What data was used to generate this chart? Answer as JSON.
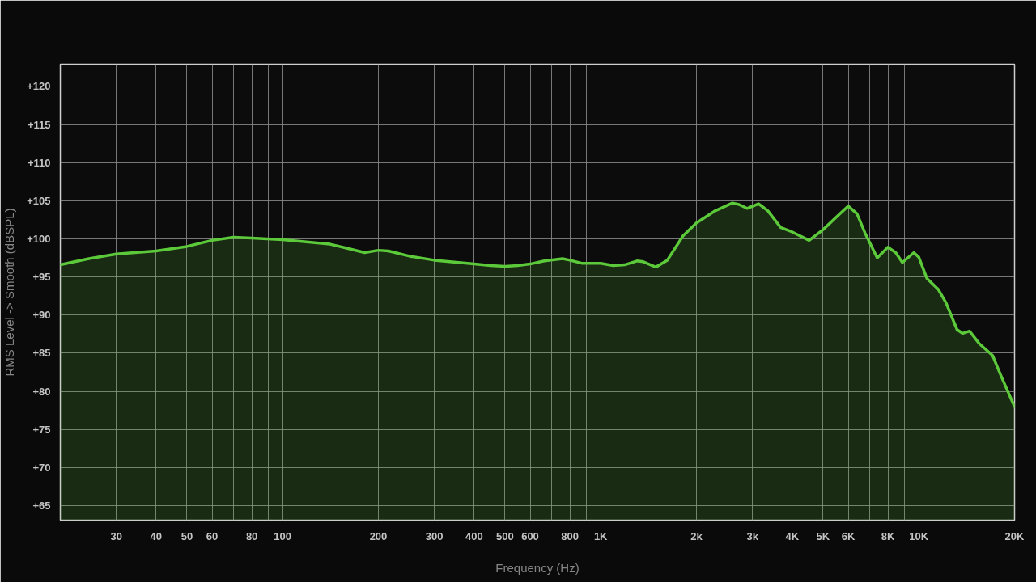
{
  "chart_data": {
    "type": "area",
    "xlabel": "Frequency (Hz)",
    "ylabel": "RMS Level -> Smooth (dBSPL)",
    "log": "x",
    "grid": true,
    "line_style": "solid",
    "xlim": [
      20,
      20000
    ],
    "ylim": [
      63.1,
      122.9
    ],
    "xticks": [
      30,
      40,
      50,
      60,
      {
        "value": 70,
        "label": null
      },
      80,
      {
        "value": 90,
        "label": null
      },
      100,
      200,
      300,
      400,
      500,
      600,
      {
        "value": 700,
        "label": null
      },
      800,
      {
        "value": 900,
        "label": null
      },
      {
        "value": 1000,
        "label": "1K"
      },
      {
        "value": 2000,
        "label": "2k"
      },
      {
        "value": 3000,
        "label": "3k"
      },
      {
        "value": 4000,
        "label": "4K"
      },
      {
        "value": 5000,
        "label": "5K"
      },
      {
        "value": 6000,
        "label": "6K"
      },
      {
        "value": 7000,
        "label": null
      },
      {
        "value": 8000,
        "label": "8K"
      },
      {
        "value": 9000,
        "label": null
      },
      {
        "value": 10000,
        "label": "10K"
      },
      {
        "value": 20000,
        "label": "20K"
      }
    ],
    "yticks": [
      {
        "value": 65,
        "label": "+65"
      },
      {
        "value": 70,
        "label": "+70"
      },
      {
        "value": 75,
        "label": "+75"
      },
      {
        "value": 80,
        "label": "+80"
      },
      {
        "value": 85,
        "label": "+85"
      },
      {
        "value": 90,
        "label": "+90"
      },
      {
        "value": 95,
        "label": "+95"
      },
      {
        "value": 100,
        "label": "+100"
      },
      {
        "value": 105,
        "label": "+105"
      },
      {
        "value": 110,
        "label": "+110"
      },
      {
        "value": 115,
        "label": "+115"
      },
      {
        "value": 120,
        "label": "+120"
      }
    ],
    "series": [
      {
        "color": "#5cc93a",
        "x": [
          20,
          24.6,
          30,
          40,
          50,
          60,
          70,
          80,
          100,
          141,
          158,
          181,
          200,
          215,
          252,
          300,
          400,
          451,
          500,
          548,
          600,
          665,
          759,
          800,
          871,
          1000,
          1095,
          1190,
          1300,
          1361,
          1490,
          1620,
          1815,
          2000,
          2295,
          2594,
          2723,
          2884,
          3136,
          3351,
          3679,
          4000,
          4521,
          5000,
          5585,
          6000,
          6393,
          6770,
          7400,
          8000,
          8460,
          8880,
          9650,
          10000,
          10610,
          11500,
          12180,
          13190,
          13740,
          14440,
          15460,
          17060,
          18110,
          19230,
          20000
        ],
        "values": [
          96.6,
          97.4,
          98.0,
          98.4,
          99.0,
          99.8,
          100.2,
          100.1,
          99.9,
          99.3,
          98.8,
          98.2,
          98.5,
          98.4,
          97.7,
          97.2,
          96.7,
          96.5,
          96.4,
          96.5,
          96.7,
          97.1,
          97.4,
          97.2,
          96.8,
          96.8,
          96.5,
          96.6,
          97.1,
          97.0,
          96.3,
          97.2,
          100.4,
          102.1,
          103.7,
          104.7,
          104.5,
          104.0,
          104.6,
          103.7,
          101.5,
          100.9,
          99.8,
          101.2,
          103.1,
          104.3,
          103.3,
          100.8,
          97.5,
          98.9,
          98.2,
          96.9,
          98.2,
          97.6,
          94.8,
          93.4,
          91.6,
          88.1,
          87.6,
          87.9,
          86.3,
          84.7,
          82.1,
          79.6,
          78.0
        ]
      }
    ]
  }
}
